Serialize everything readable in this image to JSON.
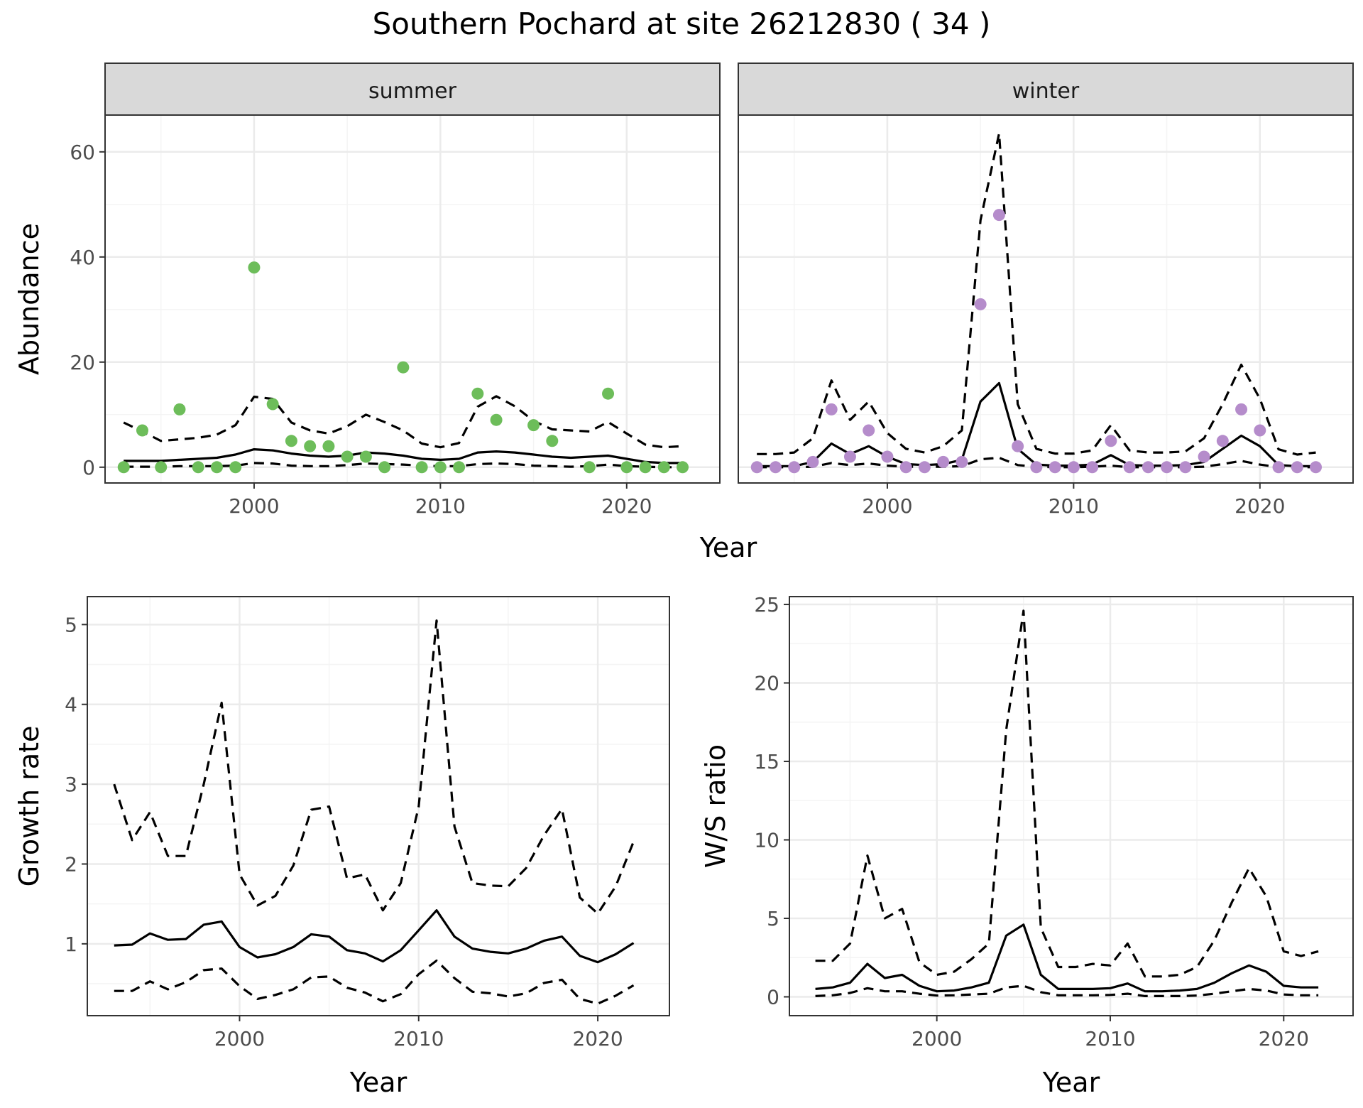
{
  "figure_title": "Southern Pochard at site 26212830 ( 34 )",
  "colors": {
    "summer_points": "#6dbd5a",
    "winter_points": "#b58ccb",
    "line": "#000000",
    "strip_bg": "#d9d9d9",
    "grid_major": "#ebebeb",
    "grid_minor": "#f4f4f4",
    "panel_border": "#333333"
  },
  "chart_data": [
    {
      "id": "summer",
      "type": "scatter",
      "facet_label": "summer",
      "xlabel": "Year",
      "ylabel": "Abundance",
      "xlim": [
        1992,
        2025
      ],
      "ylim": [
        -3,
        67
      ],
      "xticks": [
        2000,
        2010,
        2020
      ],
      "yticks": [
        0,
        20,
        40,
        60
      ],
      "grid": true,
      "point_years": [
        1993,
        1994,
        1995,
        1996,
        1997,
        1998,
        1999,
        2000,
        2001,
        2002,
        2003,
        2004,
        2005,
        2006,
        2007,
        2008,
        2009,
        2010,
        2011,
        2012,
        2013,
        2015,
        2016,
        2018,
        2019,
        2020,
        2021,
        2022,
        2023
      ],
      "point_values": [
        0,
        7,
        0,
        11,
        0,
        0,
        0,
        38,
        12,
        5,
        4,
        4,
        2,
        2,
        0,
        19,
        0,
        0,
        0,
        14,
        9,
        8,
        5,
        0,
        14,
        0,
        0,
        0,
        0
      ],
      "line_x": [
        1993,
        1994,
        1995,
        1996,
        1997,
        1998,
        1999,
        2000,
        2001,
        2002,
        2003,
        2004,
        2005,
        2006,
        2007,
        2008,
        2009,
        2010,
        2011,
        2012,
        2013,
        2014,
        2015,
        2016,
        2017,
        2018,
        2019,
        2020,
        2021,
        2022,
        2023
      ],
      "estimate": [
        1.2,
        1.2,
        1.2,
        1.4,
        1.6,
        1.8,
        2.4,
        3.4,
        3.2,
        2.6,
        2.2,
        2.0,
        2.2,
        2.8,
        2.6,
        2.2,
        1.6,
        1.4,
        1.6,
        2.8,
        3.0,
        2.8,
        2.4,
        2.0,
        1.8,
        2.0,
        2.2,
        1.6,
        1.0,
        0.8,
        0.8
      ],
      "lower": [
        0.1,
        0.1,
        0.1,
        0.2,
        0.2,
        0.2,
        0.3,
        0.8,
        0.7,
        0.3,
        0.2,
        0.2,
        0.4,
        0.7,
        0.6,
        0.5,
        0.3,
        0.2,
        0.2,
        0.6,
        0.7,
        0.6,
        0.3,
        0.2,
        0.1,
        0.2,
        0.5,
        0.2,
        0.1,
        0.0,
        0.0
      ],
      "upper": [
        8.5,
        6.8,
        5.0,
        5.3,
        5.6,
        6.2,
        8.0,
        13.4,
        13.0,
        8.5,
        7.0,
        6.4,
        7.8,
        10.0,
        8.6,
        7.0,
        4.5,
        3.8,
        4.6,
        11.5,
        13.5,
        11.6,
        8.8,
        7.2,
        7.0,
        6.8,
        8.6,
        6.4,
        4.3,
        3.8,
        4.0
      ]
    },
    {
      "id": "winter",
      "type": "scatter",
      "facet_label": "winter",
      "xlabel": "Year",
      "ylabel": "",
      "xlim": [
        1992,
        2025
      ],
      "ylim": [
        -3,
        67
      ],
      "xticks": [
        2000,
        2010,
        2020
      ],
      "yticks": [
        0,
        20,
        40,
        60
      ],
      "grid": true,
      "point_years": [
        1993,
        1994,
        1995,
        1996,
        1997,
        1998,
        1999,
        2000,
        2001,
        2002,
        2003,
        2004,
        2005,
        2006,
        2007,
        2008,
        2009,
        2010,
        2011,
        2012,
        2013,
        2014,
        2015,
        2016,
        2017,
        2018,
        2019,
        2020,
        2021,
        2022,
        2023
      ],
      "point_values": [
        0,
        0,
        0,
        1,
        11,
        2,
        7,
        2,
        0,
        0,
        1,
        1,
        31,
        48,
        4,
        0,
        0,
        0,
        0,
        5,
        0,
        0,
        0,
        0,
        2,
        5,
        11,
        7,
        0,
        0,
        0
      ],
      "line_x": [
        1993,
        1994,
        1995,
        1996,
        1997,
        1998,
        1999,
        2000,
        2001,
        2002,
        2003,
        2004,
        2005,
        2006,
        2007,
        2008,
        2009,
        2010,
        2011,
        2012,
        2013,
        2014,
        2015,
        2016,
        2017,
        2018,
        2019,
        2020,
        2021,
        2022,
        2023
      ],
      "estimate": [
        0.2,
        0.2,
        0.2,
        1.0,
        4.5,
        2.5,
        4.0,
        2.0,
        0.6,
        0.4,
        0.6,
        1.4,
        12.5,
        16.0,
        3.5,
        0.5,
        0.3,
        0.3,
        0.5,
        2.3,
        0.4,
        0.3,
        0.3,
        0.4,
        1.0,
        3.5,
        6.0,
        4.0,
        0.4,
        0.2,
        0.2
      ],
      "lower": [
        0.0,
        0.0,
        0.0,
        0.1,
        0.8,
        0.4,
        0.7,
        0.3,
        0.1,
        0.1,
        0.1,
        0.2,
        1.5,
        1.8,
        0.4,
        0.1,
        0.0,
        0.0,
        0.1,
        0.3,
        0.0,
        0.0,
        0.0,
        0.0,
        0.1,
        0.6,
        1.2,
        0.5,
        0.0,
        0.0,
        0.0
      ],
      "upper": [
        2.5,
        2.5,
        2.8,
        5.5,
        16.5,
        9.0,
        12.5,
        6.5,
        3.5,
        2.8,
        4.0,
        7.0,
        47.0,
        63.5,
        12.0,
        3.5,
        2.6,
        2.6,
        3.2,
        8.0,
        3.2,
        2.8,
        2.8,
        3.0,
        5.5,
        12.0,
        19.5,
        13.0,
        3.4,
        2.4,
        2.8
      ]
    },
    {
      "id": "growth",
      "type": "line",
      "xlabel": "Year",
      "ylabel": "Growth rate",
      "xlim": [
        1991.5,
        2024
      ],
      "ylim": [
        0.1,
        5.35
      ],
      "xticks": [
        2000,
        2010,
        2020
      ],
      "yticks": [
        1,
        2,
        3,
        4,
        5
      ],
      "grid": true,
      "line_x": [
        1993,
        1994,
        1995,
        1996,
        1997,
        1998,
        1999,
        2000,
        2001,
        2002,
        2003,
        2004,
        2005,
        2006,
        2007,
        2008,
        2009,
        2010,
        2011,
        2012,
        2013,
        2014,
        2015,
        2016,
        2017,
        2018,
        2019,
        2020,
        2021,
        2022
      ],
      "estimate": [
        0.98,
        0.99,
        1.13,
        1.05,
        1.06,
        1.24,
        1.28,
        0.96,
        0.83,
        0.87,
        0.96,
        1.12,
        1.09,
        0.92,
        0.88,
        0.78,
        0.92,
        1.17,
        1.42,
        1.09,
        0.94,
        0.9,
        0.88,
        0.94,
        1.04,
        1.09,
        0.85,
        0.77,
        0.87,
        1.01
      ],
      "lower": [
        0.41,
        0.41,
        0.53,
        0.43,
        0.52,
        0.67,
        0.69,
        0.47,
        0.31,
        0.36,
        0.43,
        0.58,
        0.59,
        0.45,
        0.39,
        0.28,
        0.37,
        0.62,
        0.79,
        0.57,
        0.4,
        0.38,
        0.34,
        0.38,
        0.51,
        0.55,
        0.31,
        0.25,
        0.35,
        0.48
      ],
      "upper": [
        3.0,
        2.3,
        2.65,
        2.1,
        2.1,
        3.0,
        4.02,
        1.87,
        1.48,
        1.6,
        1.98,
        2.68,
        2.72,
        1.82,
        1.87,
        1.42,
        1.76,
        2.72,
        5.05,
        2.47,
        1.76,
        1.73,
        1.72,
        1.95,
        2.36,
        2.69,
        1.58,
        1.38,
        1.72,
        2.28
      ]
    },
    {
      "id": "ws",
      "type": "line",
      "xlabel": "Year",
      "ylabel": "W/S ratio",
      "xlim": [
        1991.5,
        2024
      ],
      "ylim": [
        -1.2,
        25.5
      ],
      "xticks": [
        2000,
        2010,
        2020
      ],
      "yticks": [
        0,
        5,
        10,
        15,
        20,
        25
      ],
      "grid": true,
      "line_x": [
        1993,
        1994,
        1995,
        1996,
        1997,
        1998,
        1999,
        2000,
        2001,
        2002,
        2003,
        2004,
        2005,
        2006,
        2007,
        2008,
        2009,
        2010,
        2011,
        2012,
        2013,
        2014,
        2015,
        2016,
        2017,
        2018,
        2019,
        2020,
        2021,
        2022
      ],
      "estimate": [
        0.5,
        0.6,
        0.9,
        2.1,
        1.2,
        1.4,
        0.7,
        0.35,
        0.4,
        0.6,
        0.9,
        3.9,
        4.6,
        1.4,
        0.5,
        0.5,
        0.5,
        0.55,
        0.85,
        0.35,
        0.35,
        0.4,
        0.5,
        0.9,
        1.5,
        2.0,
        1.6,
        0.7,
        0.6,
        0.6
      ],
      "lower": [
        0.05,
        0.1,
        0.25,
        0.55,
        0.35,
        0.35,
        0.2,
        0.08,
        0.1,
        0.15,
        0.2,
        0.6,
        0.7,
        0.3,
        0.1,
        0.1,
        0.1,
        0.12,
        0.2,
        0.05,
        0.05,
        0.05,
        0.08,
        0.2,
        0.35,
        0.5,
        0.4,
        0.15,
        0.1,
        0.1
      ],
      "upper": [
        2.3,
        2.3,
        3.4,
        9.0,
        5.0,
        5.6,
        2.2,
        1.4,
        1.6,
        2.4,
        3.4,
        17.0,
        24.6,
        4.4,
        1.9,
        1.9,
        2.1,
        2.0,
        3.4,
        1.3,
        1.3,
        1.4,
        1.9,
        3.6,
        6.0,
        8.2,
        6.4,
        2.9,
        2.6,
        2.9
      ]
    }
  ]
}
